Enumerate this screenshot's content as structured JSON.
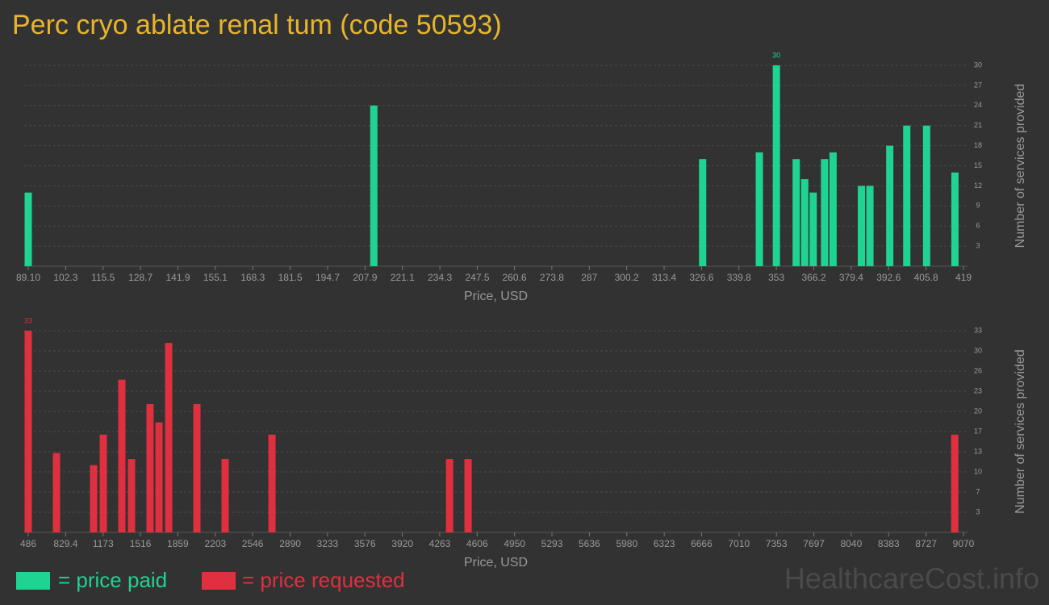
{
  "title": "Perc cryo ablate renal tum (code 50593)",
  "watermark": "HealthcareCost.info",
  "chart_data": [
    {
      "type": "bar",
      "x_label": "Price, USD",
      "y_label": "Number of services provided",
      "series": [
        {
          "name": "= price paid",
          "color": "#1fd393",
          "x": [
            89.1,
            211,
            327,
            347,
            353,
            360,
            363,
            366,
            370,
            373,
            383,
            386,
            393,
            399,
            406,
            416
          ],
          "values": [
            11,
            24,
            16,
            17,
            30,
            16,
            13,
            11,
            16,
            17,
            12,
            12,
            18,
            21,
            21,
            14
          ]
        }
      ],
      "xlim": [
        89.1,
        419
      ],
      "xticks": [
        {
          "value": 89.1,
          "label": "89.10"
        },
        102.3,
        115.5,
        128.7,
        141.9,
        155.1,
        168.3,
        181.5,
        194.7,
        207.9,
        221.1,
        234.3,
        247.5,
        260.6,
        273.8,
        287,
        300.2,
        313.4,
        326.6,
        339.8,
        353,
        366.2,
        379.4,
        392.6,
        405.8,
        419
      ],
      "ylim": [
        0,
        30
      ],
      "yticks": [
        3,
        6,
        9,
        12,
        15,
        18,
        21,
        24,
        27,
        30
      ],
      "grid": true,
      "peak_index": 4
    },
    {
      "type": "bar",
      "x_label": "Price, USD",
      "y_label": "Number of services provided",
      "series": [
        {
          "name": "= price requested",
          "color": "#e0303f",
          "x": [
            486,
            745,
            1086,
            1175,
            1345,
            1434,
            1604,
            1686,
            1775,
            2034,
            2293,
            2723,
            4353,
            4523,
            8990
          ],
          "values": [
            33,
            13,
            11,
            16,
            25,
            12,
            21,
            18,
            31,
            21,
            12,
            16,
            12,
            12,
            16
          ]
        }
      ],
      "xlim": [
        486,
        9070
      ],
      "xticks": [
        486,
        829.4,
        1173,
        1516,
        1859,
        2203,
        2546,
        2890,
        3233,
        3576,
        3920,
        4263,
        4606,
        4950,
        5293,
        5636,
        5980,
        6323,
        6666,
        7010,
        7353,
        7697,
        8040,
        8383,
        8727,
        9070
      ],
      "ylim": [
        0,
        33
      ],
      "yticks": [
        {
          "value": 3.3,
          "label": "3"
        },
        {
          "value": 6.6,
          "label": "7"
        },
        {
          "value": 9.9,
          "label": "10"
        },
        {
          "value": 13.2,
          "label": "13"
        },
        {
          "value": 16.5,
          "label": "17"
        },
        {
          "value": 19.8,
          "label": "20"
        },
        {
          "value": 23.1,
          "label": "23"
        },
        {
          "value": 26.4,
          "label": "26"
        },
        {
          "value": 29.7,
          "label": "30"
        },
        {
          "value": 33,
          "label": "33"
        }
      ],
      "grid": true,
      "peak_index": 0
    }
  ]
}
